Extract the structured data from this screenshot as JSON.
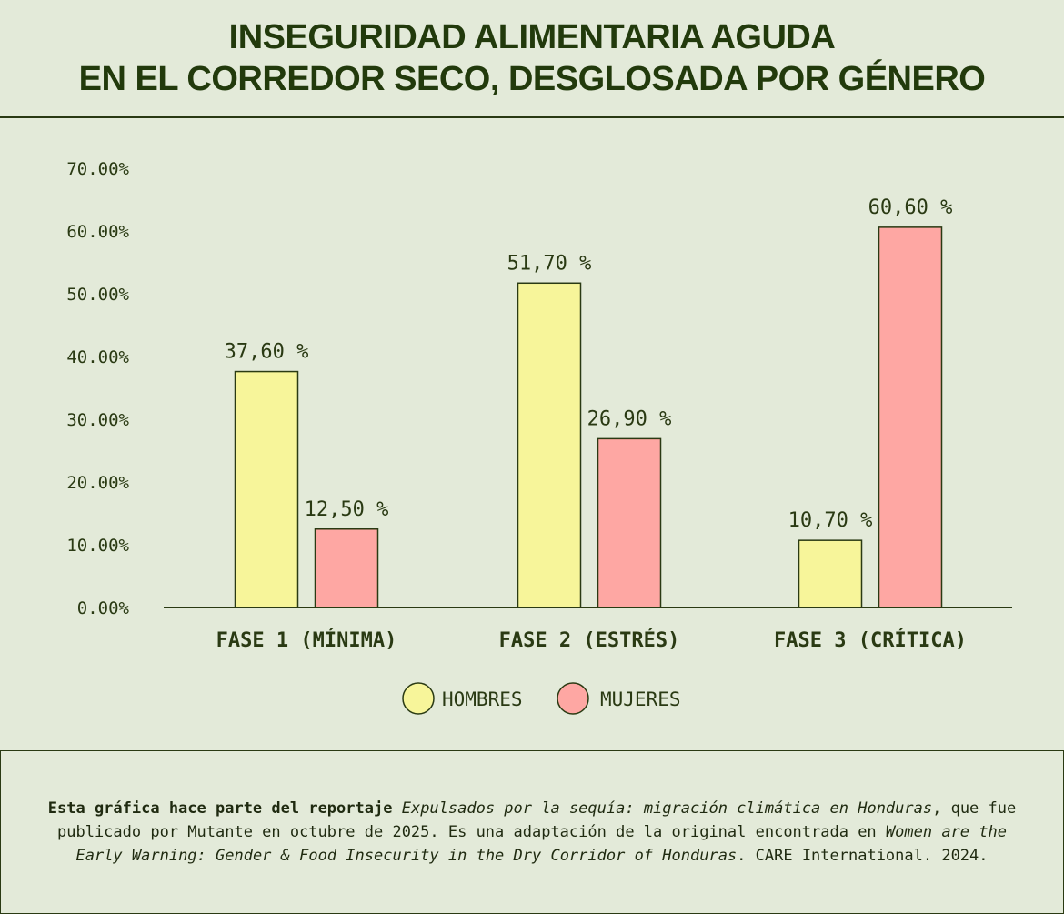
{
  "title": {
    "line1": "INSEGURIDAD ALIMENTARIA AGUDA",
    "line2": "EN EL CORREDOR SECO, DESGLOSADA POR GÉNERO"
  },
  "colors": {
    "background": "#e3ead9",
    "text": "#2a3a13",
    "hombres": "#f7f59a",
    "mujeres": "#fea7a3",
    "stroke": "#2a3a13"
  },
  "chart_data": {
    "type": "bar",
    "categories": [
      "FASE 1 (MÍNIMA)",
      "FASE 2 (ESTRÉS)",
      "FASE 3 (CRÍTICA)"
    ],
    "series": [
      {
        "name": "HOMBRES",
        "values": [
          37.6,
          51.7,
          10.7
        ],
        "labels": [
          "37,60 %",
          "51,70 %",
          "10,70 %"
        ]
      },
      {
        "name": "MUJERES",
        "values": [
          12.5,
          26.9,
          60.6
        ],
        "labels": [
          "12,50 %",
          "26,90 %",
          "60,60 %"
        ]
      }
    ],
    "ylim": [
      0,
      70
    ],
    "yticks": [
      "0.00%",
      "10.00%",
      "20.00%",
      "30.00%",
      "40.00%",
      "50.00%",
      "60.00%",
      "70.00%"
    ],
    "grid": false,
    "legend": "bottom-center"
  },
  "footer": {
    "bold": "Esta gráfica hace parte del reportaje",
    "italic1": "Expulsados por la sequía: migración climática en Honduras",
    "text1": ", que fue publicado por Mutante en octubre de 2025. Es una adaptación de la original encontrada en",
    "italic2": "Women are the Early Warning: Gender & Food Insecurity in the Dry Corridor of Honduras",
    "text2": ". CARE International. 2024."
  }
}
